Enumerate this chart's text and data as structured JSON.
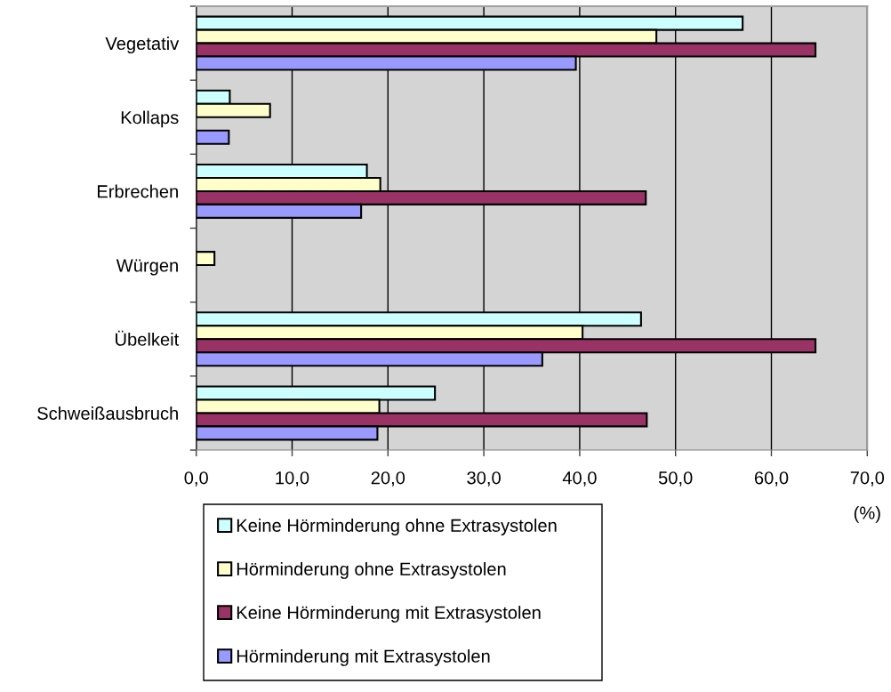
{
  "chart_data": {
    "type": "bar",
    "orientation": "horizontal",
    "categories": [
      "Vegetativ",
      "Kollaps",
      "Erbrechen",
      "Würgen",
      "Übelkeit",
      "Schweißausbruch"
    ],
    "series": [
      {
        "name": "Keine Hörminderung ohne Extrasystolen",
        "color": "#ccffff",
        "values": [
          57.0,
          3.5,
          17.8,
          null,
          46.4,
          24.9
        ]
      },
      {
        "name": "Hörminderung ohne Extrasystolen",
        "color": "#ffffcc",
        "values": [
          48.0,
          7.7,
          19.2,
          1.9,
          40.3,
          19.1
        ]
      },
      {
        "name": "Keine Hörminderung mit Extrasystolen",
        "color": "#993366",
        "values": [
          64.6,
          null,
          46.9,
          null,
          64.6,
          47.0
        ]
      },
      {
        "name": "Hörminderung mit Extrasystolen",
        "color": "#9999ff",
        "values": [
          39.6,
          3.4,
          17.2,
          null,
          36.1,
          18.9
        ]
      }
    ],
    "xlim": [
      0,
      70
    ],
    "xticks": [
      {
        "value": 0,
        "label": "0,0"
      },
      {
        "value": 10,
        "label": "10,0"
      },
      {
        "value": 20,
        "label": "20,0"
      },
      {
        "value": 30,
        "label": "30,0"
      },
      {
        "value": 40,
        "label": "40,0"
      },
      {
        "value": 50,
        "label": "50,0"
      },
      {
        "value": 60,
        "label": "60,0"
      },
      {
        "value": 70,
        "label": "70,0"
      }
    ],
    "xlabel": "(%)",
    "grid": "x",
    "legend": "bottom"
  }
}
